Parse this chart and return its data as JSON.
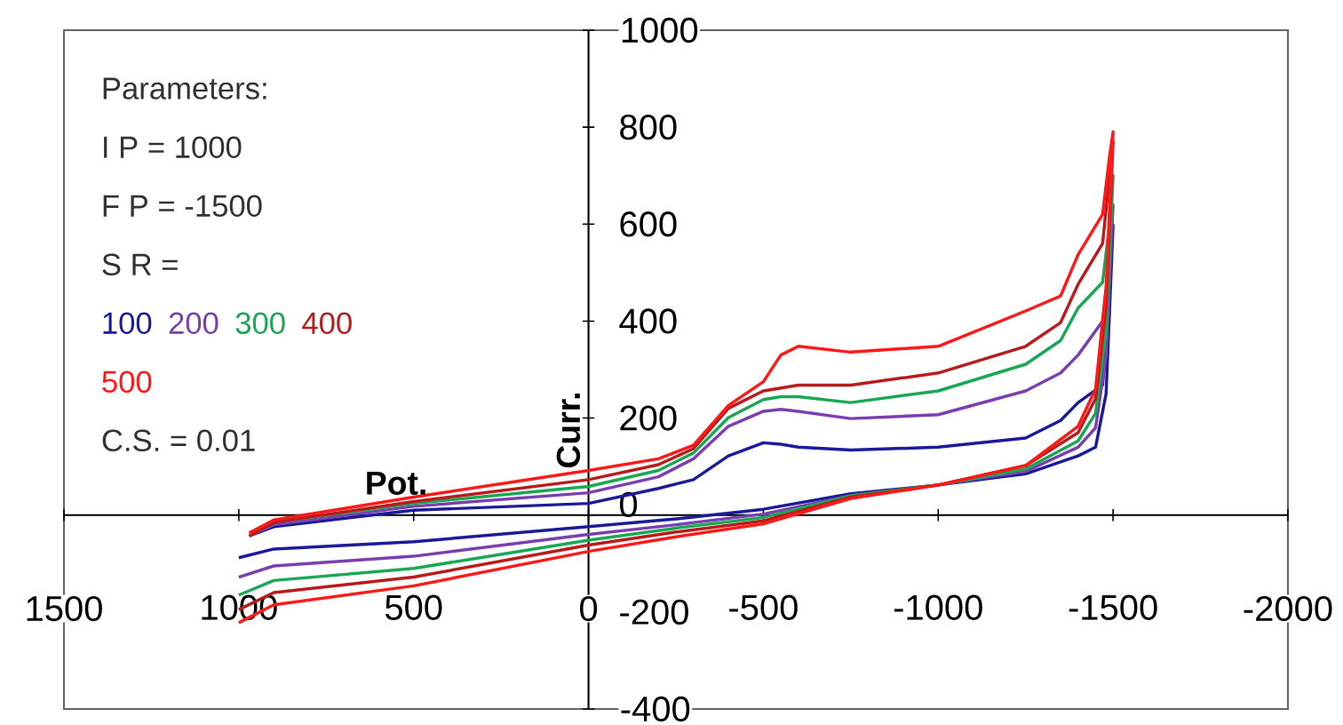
{
  "chart_data": {
    "type": "line",
    "xlabel": "Pot.",
    "ylabel": "Curr.",
    "annotations": [
      "Parameters:",
      "I P = 1000",
      "F P = -1500",
      "S R =",
      "C.S. = 0.01"
    ],
    "xlim": [
      1500,
      -2000
    ],
    "ylim": [
      -400,
      1000
    ],
    "xticks": [
      1500,
      1000,
      500,
      0,
      -500,
      -1000,
      -1500,
      -2000
    ],
    "yticks": [
      -400,
      -200,
      0,
      200,
      400,
      600,
      800,
      1000
    ],
    "series": [
      {
        "name": "100",
        "color": "#1c1c9a",
        "x": [
          1000,
          900,
          500,
          0,
          -250,
          -500,
          -750,
          -1000,
          -1250,
          -1400,
          -1450,
          -1480,
          -1500,
          -1490,
          -1470,
          -1400,
          -1350,
          -1250,
          -1000,
          -750,
          -600,
          -550,
          -500,
          -400,
          -300,
          -200,
          0,
          500,
          900,
          970
        ],
        "values": [
          -88,
          -70,
          -55,
          -24,
          -8,
          12,
          44,
          62,
          85,
          122,
          140,
          250,
          598,
          452,
          268,
          232,
          195,
          159,
          140,
          134,
          140,
          146,
          149,
          122,
          73,
          55,
          24,
          10,
          -24,
          -43
        ]
      },
      {
        "name": "200",
        "color": "#7b3fb0",
        "x": [
          1000,
          900,
          500,
          0,
          -250,
          -500,
          -750,
          -1000,
          -1250,
          -1400,
          -1450,
          -1480,
          -1500,
          -1490,
          -1470,
          -1400,
          -1350,
          -1250,
          -1000,
          -750,
          -600,
          -550,
          -500,
          -400,
          -300,
          -200,
          0,
          500,
          900,
          970
        ],
        "values": [
          -128,
          -105,
          -85,
          -40,
          -20,
          2,
          40,
          62,
          90,
          140,
          180,
          330,
          640,
          520,
          400,
          330,
          293,
          256,
          207,
          199,
          214,
          218,
          214,
          183,
          116,
          79,
          46,
          18,
          -20,
          -43
        ]
      },
      {
        "name": "300",
        "color": "#1aa855",
        "x": [
          1000,
          900,
          500,
          0,
          -250,
          -500,
          -750,
          -1000,
          -1250,
          -1400,
          -1450,
          -1480,
          -1500,
          -1490,
          -1470,
          -1400,
          -1350,
          -1250,
          -1000,
          -750,
          -600,
          -550,
          -500,
          -400,
          -300,
          -200,
          0,
          500,
          900,
          970
        ],
        "values": [
          -165,
          -135,
          -110,
          -52,
          -27,
          -5,
          40,
          62,
          95,
          153,
          210,
          380,
          700,
          600,
          480,
          427,
          360,
          311,
          256,
          232,
          244,
          244,
          238,
          201,
          128,
          92,
          59,
          24,
          -15,
          -43
        ]
      },
      {
        "name": "400",
        "color": "#b81c1c",
        "x": [
          1000,
          900,
          500,
          0,
          -250,
          -500,
          -750,
          -1000,
          -1250,
          -1400,
          -1450,
          -1480,
          -1500,
          -1490,
          -1470,
          -1400,
          -1350,
          -1250,
          -1000,
          -750,
          -600,
          -550,
          -500,
          -400,
          -300,
          -200,
          0,
          500,
          900,
          970
        ],
        "values": [
          -195,
          -160,
          -128,
          -62,
          -35,
          -12,
          37,
          62,
          102,
          170,
          240,
          430,
          770,
          700,
          560,
          476,
          397,
          348,
          293,
          268,
          268,
          262,
          256,
          220,
          137,
          104,
          73,
          28,
          -15,
          -43
        ]
      },
      {
        "name": "500",
        "color": "#ff1a1a",
        "x": [
          1000,
          900,
          500,
          0,
          -250,
          -500,
          -750,
          -1000,
          -1250,
          -1400,
          -1450,
          -1480,
          -1500,
          -1490,
          -1470,
          -1400,
          -1350,
          -1250,
          -1000,
          -750,
          -600,
          -550,
          -500,
          -400,
          -300,
          -200,
          0,
          500,
          900,
          970
        ],
        "values": [
          -222,
          -185,
          -146,
          -75,
          -45,
          -18,
          34,
          62,
          102,
          183,
          260,
          470,
          790,
          740,
          620,
          537,
          452,
          421,
          348,
          336,
          348,
          330,
          275,
          226,
          144,
          116,
          92,
          37,
          -10,
          -37
        ]
      }
    ]
  }
}
